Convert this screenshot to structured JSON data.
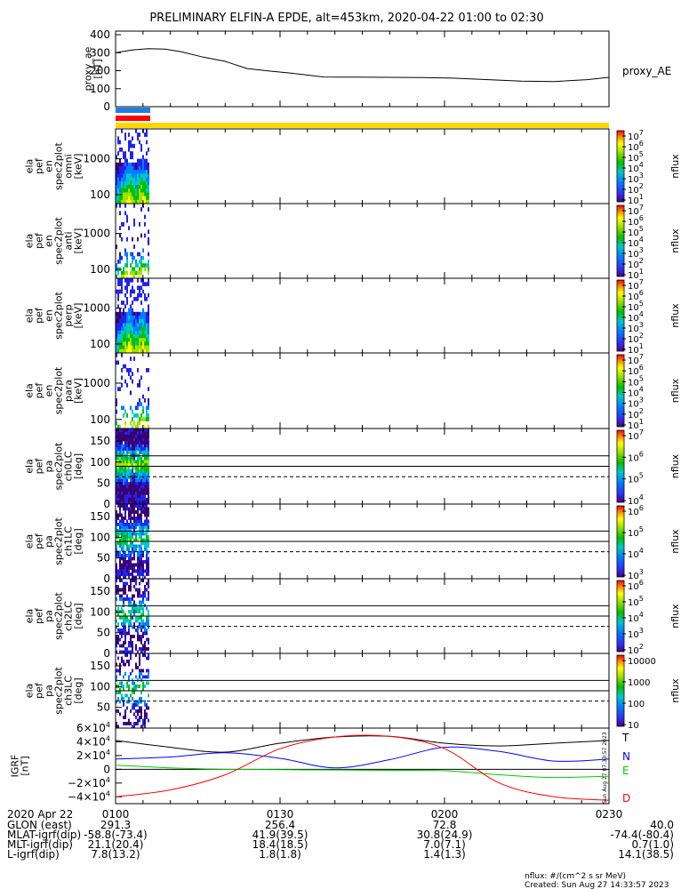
{
  "title": "PRELIMINARY ELFIN-A EPDE, alt=453km, 2020-04-22 01:00 to 02:30",
  "chart_data": [
    {
      "type": "line",
      "name": "proxy_ae",
      "ylabel": [
        "proxy_ae",
        "[nT]"
      ],
      "legend": "proxy_AE",
      "yticks": [
        "400",
        "300",
        "200",
        "100",
        "0"
      ],
      "ylim": [
        0,
        420
      ],
      "x_minutes": [
        0,
        3,
        6,
        9,
        12,
        16,
        20,
        24,
        28,
        32,
        38,
        44,
        50,
        56,
        62,
        68,
        74,
        80,
        86,
        90
      ],
      "values": [
        300,
        315,
        322,
        320,
        305,
        275,
        252,
        212,
        198,
        187,
        165,
        164,
        163,
        162,
        158,
        150,
        142,
        140,
        150,
        163
      ]
    },
    {
      "type": "heatmap",
      "name": "omni",
      "ylabel": [
        "ela",
        "pef",
        "en",
        "spec2plot",
        "omni",
        "[keV]"
      ],
      "yticks": [
        "1000",
        "100"
      ],
      "zlabel": "nflux",
      "zticks": [
        "10^7",
        "10^6",
        "10^5",
        "10^4",
        "10^3",
        "10^2",
        "10^1"
      ]
    },
    {
      "type": "heatmap",
      "name": "anti",
      "ylabel": [
        "ela",
        "pef",
        "en",
        "spec2plot",
        "anti",
        "[keV]"
      ],
      "yticks": [
        "1000",
        "100"
      ],
      "zlabel": "nflux",
      "zticks": [
        "10^7",
        "10^6",
        "10^5",
        "10^4",
        "10^3",
        "10^2",
        "10^1"
      ]
    },
    {
      "type": "heatmap",
      "name": "perp",
      "ylabel": [
        "ela",
        "pef",
        "en",
        "spec2plot",
        "perp",
        "[keV]"
      ],
      "yticks": [
        "1000",
        "100"
      ],
      "zlabel": "nflux",
      "zticks": [
        "10^7",
        "10^6",
        "10^5",
        "10^4",
        "10^3",
        "10^2",
        "10^1"
      ]
    },
    {
      "type": "heatmap",
      "name": "para",
      "ylabel": [
        "ela",
        "pef",
        "en",
        "spec2plot",
        "para",
        "[keV]"
      ],
      "yticks": [
        "1000",
        "100"
      ],
      "zlabel": "nflux",
      "zticks": [
        "10^7",
        "10^6",
        "10^5",
        "10^4",
        "10^3",
        "10^2",
        "10^1"
      ]
    },
    {
      "type": "heatmap",
      "name": "ch0LC",
      "ylabel": [
        "ela",
        "pef",
        "pa",
        "spec2plot",
        "ch0LC",
        "[deg]"
      ],
      "yticks": [
        "150",
        "100",
        "50",
        "0"
      ],
      "ylim": [
        0,
        180
      ],
      "ref_lines": [
        115,
        90
      ],
      "dashed_line": 65,
      "zlabel": "nflux",
      "zticks": [
        "10^7",
        "10^6",
        "10^5",
        "10^4"
      ]
    },
    {
      "type": "heatmap",
      "name": "ch1LC",
      "ylabel": [
        "ela",
        "pef",
        "pa",
        "spec2plot",
        "ch1LC",
        "[deg]"
      ],
      "yticks": [
        "150",
        "100",
        "50",
        "0"
      ],
      "ylim": [
        0,
        180
      ],
      "ref_lines": [
        115,
        90
      ],
      "dashed_line": 65,
      "zlabel": "nflux",
      "zticks": [
        "10^6",
        "10^5",
        "10^4",
        "10^3"
      ]
    },
    {
      "type": "heatmap",
      "name": "ch2LC",
      "ylabel": [
        "ela",
        "pef",
        "pa",
        "spec2plot",
        "ch2LC",
        "[deg]"
      ],
      "yticks": [
        "150",
        "100",
        "50",
        "0"
      ],
      "ylim": [
        0,
        180
      ],
      "ref_lines": [
        115,
        90
      ],
      "dashed_line": 65,
      "zlabel": "nflux",
      "zticks": [
        "10^6",
        "10^5",
        "10^4",
        "10^3",
        "10^2"
      ]
    },
    {
      "type": "heatmap",
      "name": "ch3LC",
      "ylabel": [
        "ela",
        "pef",
        "pa",
        "spec2plot",
        "ch3LC",
        "[deg]"
      ],
      "yticks": [
        "150",
        "100",
        "50"
      ],
      "ylim": [
        0,
        180
      ],
      "ref_lines": [
        115,
        90
      ],
      "dashed_line": 65,
      "zlabel": "nflux",
      "zticks": [
        "10000",
        "1000",
        "100",
        "10"
      ]
    },
    {
      "type": "line",
      "name": "IGRF",
      "ylabel": [
        "IGRF",
        "[nT]"
      ],
      "yticks": [
        "6×10^4",
        "4×10^4",
        "2×10^4",
        "0",
        "−2×10^4",
        "−4×10^4"
      ],
      "ylim": [
        -50000,
        60000
      ],
      "x_minutes": [
        0,
        10,
        20,
        30,
        40,
        50,
        60,
        70,
        80,
        90
      ],
      "series": [
        {
          "name": "T",
          "color": "#000000",
          "values": [
            42000,
            32000,
            25000,
            38000,
            47000,
            48000,
            38000,
            34000,
            38000,
            42000
          ]
        },
        {
          "name": "N",
          "color": "#0000ff",
          "values": [
            15000,
            18000,
            24000,
            16000,
            2000,
            14000,
            32000,
            26000,
            12000,
            15000
          ]
        },
        {
          "name": "E",
          "color": "#00cc00",
          "values": [
            6000,
            2000,
            0,
            -500,
            -1000,
            -1500,
            -2000,
            -8000,
            -12000,
            -10000
          ]
        },
        {
          "name": "D",
          "color": "#ff0000",
          "values": [
            -40000,
            -30000,
            -8000,
            30000,
            47000,
            48000,
            30000,
            -20000,
            -40000,
            -45000
          ]
        }
      ],
      "side_note": "Sun Aug 27 07:33:57 2023"
    }
  ],
  "xaxis": {
    "date_label": "2020 Apr 22",
    "times": [
      "0100",
      "0130",
      "0200",
      "0230"
    ],
    "rows": [
      {
        "label": "GLON (east)",
        "values": [
          "291.3",
          "256.4",
          "72.8",
          "40.0"
        ]
      },
      {
        "label": "MLAT-igrf(dip)",
        "values": [
          "-58.8(-73.4)",
          "41.9(39.5)",
          "30.8(24.9)",
          "-74.4(-80.4)"
        ]
      },
      {
        "label": "MLT-igrf(dip)",
        "values": [
          "21.1(20.4)",
          "18.4(18.5)",
          "7.0(7.1)",
          "0.7(1.0)"
        ]
      },
      {
        "label": "L-igrf(dip)",
        "values": [
          "7.8(13.2)",
          "1.8(1.8)",
          "1.4(1.3)",
          "14.1(38.5)"
        ]
      }
    ]
  },
  "footer": {
    "units": "nflux: #/(cm^2 s sr MeV)",
    "created": "Created: Sun Aug 27 14:33:57 2023"
  }
}
